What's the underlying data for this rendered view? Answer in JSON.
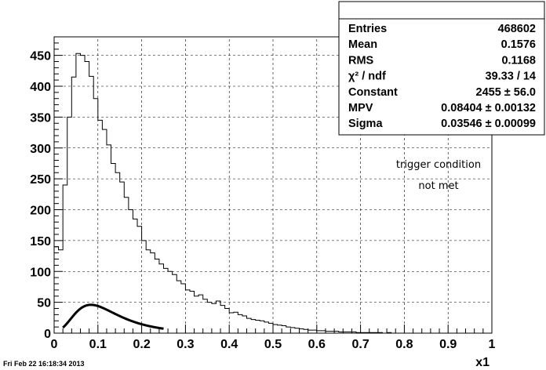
{
  "footer": {
    "timestamp": "Fri Feb 22 16:18:34 2013"
  },
  "annotation": {
    "line1": "trigger condition",
    "line2": "not met"
  },
  "stats": {
    "rows": [
      {
        "label": "Entries",
        "value": "468602"
      },
      {
        "label": "Mean",
        "value": "0.1576"
      },
      {
        "label": "RMS",
        "value": "0.1168"
      },
      {
        "label": "χ² / ndf",
        "value": "39.33 / 14"
      },
      {
        "label": "Constant",
        "value": "2455 ± 56.0"
      },
      {
        "label": "MPV",
        "value": "0.08404 ± 0.00132"
      },
      {
        "label": "Sigma",
        "value": "0.03546 ± 0.00099"
      }
    ]
  },
  "chart_data": {
    "type": "histogram",
    "title": "",
    "xlabel": "x1",
    "ylabel": "",
    "xlim": [
      0,
      1
    ],
    "ylim": [
      0,
      480
    ],
    "xticks": [
      "0",
      "0.1",
      "0.2",
      "0.3",
      "0.4",
      "0.5",
      "0.6",
      "0.7",
      "0.8",
      "0.9",
      "1"
    ],
    "yticks": [
      "0",
      "50",
      "100",
      "150",
      "200",
      "250",
      "300",
      "350",
      "400",
      "450"
    ],
    "grid": true,
    "bin_width": 0.01,
    "bins": {
      "x_low": [
        0.0,
        0.01,
        0.02,
        0.03,
        0.04,
        0.05,
        0.06,
        0.07,
        0.08,
        0.09,
        0.1,
        0.11,
        0.12,
        0.13,
        0.14,
        0.15,
        0.16,
        0.17,
        0.18,
        0.19,
        0.2,
        0.21,
        0.22,
        0.23,
        0.24,
        0.25,
        0.26,
        0.27,
        0.28,
        0.29,
        0.3,
        0.31,
        0.32,
        0.33,
        0.34,
        0.35,
        0.36,
        0.37,
        0.38,
        0.39,
        0.4,
        0.41,
        0.42,
        0.43,
        0.44,
        0.45,
        0.46,
        0.47,
        0.48,
        0.49,
        0.5,
        0.51,
        0.52,
        0.53,
        0.54,
        0.55,
        0.56,
        0.57,
        0.58,
        0.59,
        0.6,
        0.61,
        0.62,
        0.63,
        0.64,
        0.65,
        0.66,
        0.67,
        0.68,
        0.69,
        0.7,
        0.71,
        0.72,
        0.73,
        0.74,
        0.75,
        0.76,
        0.77,
        0.78,
        0.79,
        0.8,
        0.81,
        0.82,
        0.83,
        0.84,
        0.85,
        0.86,
        0.87,
        0.88,
        0.89,
        0.9,
        0.91,
        0.92,
        0.93,
        0.94,
        0.95,
        0.96,
        0.97,
        0.98,
        0.99
      ],
      "counts": [
        140,
        135,
        240,
        350,
        415,
        453,
        450,
        440,
        416,
        380,
        345,
        330,
        305,
        275,
        260,
        245,
        220,
        200,
        185,
        173,
        150,
        135,
        130,
        120,
        112,
        105,
        100,
        95,
        85,
        80,
        70,
        68,
        60,
        62,
        55,
        50,
        48,
        52,
        45,
        40,
        33,
        34,
        30,
        28,
        24,
        22,
        21,
        20,
        18,
        16,
        14,
        13,
        12,
        10,
        9,
        8,
        7,
        6,
        5,
        5,
        4,
        4,
        3,
        3,
        3,
        2,
        2,
        2,
        2,
        1,
        1,
        1,
        1,
        1,
        1,
        0,
        1,
        0,
        0,
        0,
        0,
        0,
        0,
        0,
        0,
        0,
        0,
        0,
        0,
        0,
        0,
        0,
        0,
        0,
        0,
        0,
        0,
        0,
        0,
        0
      ]
    },
    "fit": {
      "function": "landau",
      "constant": 2455,
      "mpv": 0.08404,
      "sigma": 0.03546,
      "range": [
        0.02,
        0.25
      ]
    }
  }
}
